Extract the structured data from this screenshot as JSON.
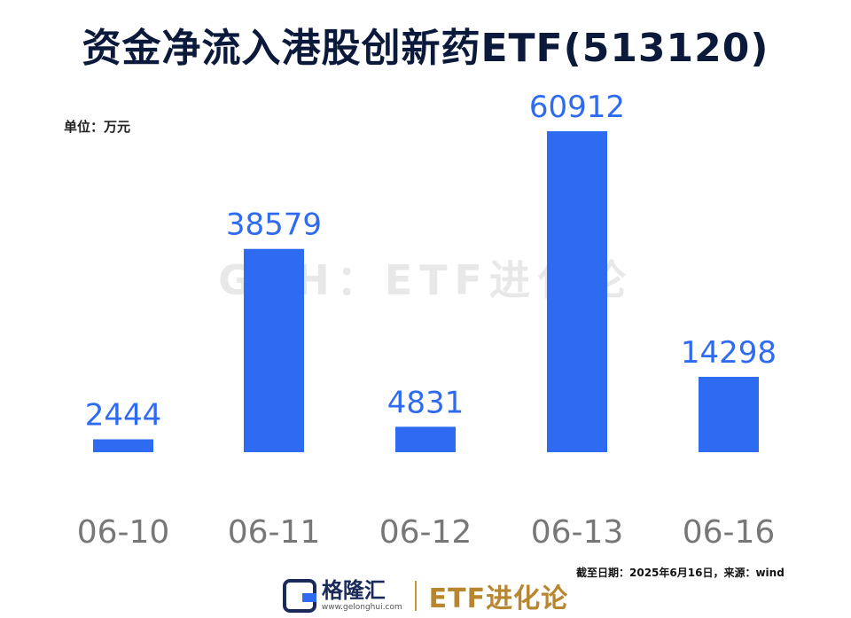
{
  "header": {
    "title": "资金净流入港股创新药ETF(513120)",
    "unit": "单位：万元"
  },
  "watermark": "GZH：ETF进化论",
  "footnote": "截至日期：2025年6月16日，来源：wind",
  "footer": {
    "logo_name": "格隆汇",
    "logo_url": "www.gelonghui.com",
    "brand": "ETF进化论"
  },
  "colors": {
    "bar": "#2f6bf0",
    "value_label": "#2f6bf0",
    "tick_label": "#777777",
    "title": "#0b1a3a"
  },
  "chart_data": {
    "type": "bar",
    "title": "资金净流入港股创新药ETF(513120)",
    "ylabel": "单位：万元",
    "xlabel": "",
    "categories": [
      "06-10",
      "06-11",
      "06-12",
      "06-13",
      "06-16"
    ],
    "values": [
      2444,
      38579,
      4831,
      60912,
      14298
    ],
    "ylim": [
      0,
      60912
    ],
    "grid": false,
    "legend": "none"
  }
}
